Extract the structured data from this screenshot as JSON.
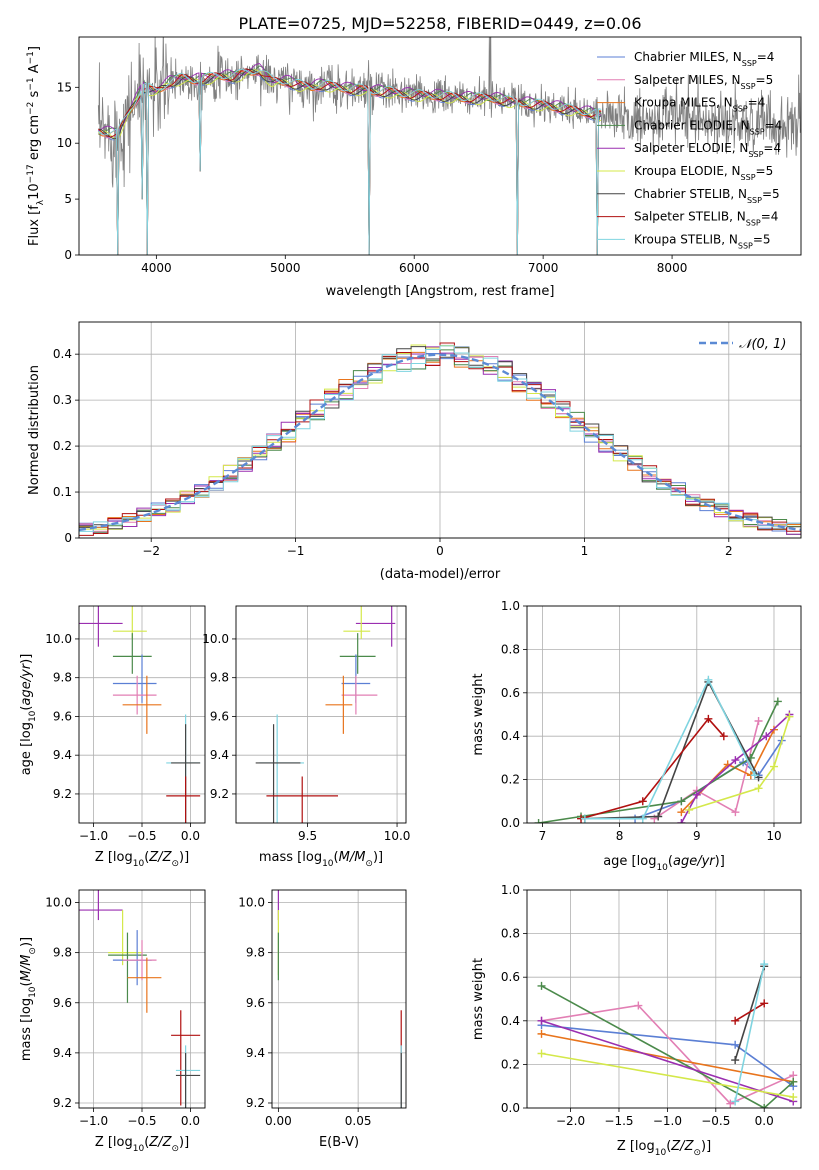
{
  "figure": {
    "title": "PLATE=0725, MJD=52258, FIBERID=0449, z=0.06"
  },
  "colors": {
    "Chabrier MILES": "#5b7fd4",
    "Salpeter MILES": "#e27fb4",
    "Kroupa MILES": "#e8741c",
    "Chabrier ELODIE": "#4b8a4b",
    "Salpeter ELODIE": "#9a2fb0",
    "Kroupa ELODIE": "#d4e84a",
    "Chabrier STELIB": "#444444",
    "Salpeter STELIB": "#b01010",
    "Kroupa STELIB": "#7fd4e0"
  },
  "chart_data": [
    {
      "id": "spectrum",
      "type": "line",
      "title": "PLATE=0725, MJD=52258, FIBERID=0449, z=0.06",
      "xlabel": "wavelength [Angstrom, rest frame]",
      "ylabel_parts": [
        "Flux [f",
        "λ",
        "10",
        "−17",
        " erg cm",
        "−2",
        " s",
        "−1",
        " A",
        "−1",
        "]"
      ],
      "xlim": [
        3400,
        9000
      ],
      "ylim": [
        0,
        19.5
      ],
      "xticks": [
        4000,
        5000,
        6000,
        7000,
        8000
      ],
      "yticks": [
        0,
        5,
        10,
        15
      ],
      "grid": false,
      "legend_position": "top-right",
      "legend": [
        {
          "name": "Chabrier MILES",
          "n": "4"
        },
        {
          "name": "Salpeter MILES",
          "n": "5"
        },
        {
          "name": "Kroupa MILES",
          "n": "4"
        },
        {
          "name": "Chabrier ELODIE",
          "n": "4"
        },
        {
          "name": "Salpeter ELODIE",
          "n": "4"
        },
        {
          "name": "Kroupa ELODIE",
          "n": "5"
        },
        {
          "name": "Chabrier STELIB",
          "n": "5"
        },
        {
          "name": "Salpeter STELIB",
          "n": "4"
        },
        {
          "name": "Kroupa STELIB",
          "n": "5"
        }
      ],
      "observed_color": "#808080",
      "continuum": [
        [
          3550,
          11.0
        ],
        [
          3700,
          10.8
        ],
        [
          3800,
          13.0
        ],
        [
          3900,
          15.0
        ],
        [
          4000,
          14.6
        ],
        [
          4100,
          15.4
        ],
        [
          4200,
          15.8
        ],
        [
          4300,
          15.6
        ],
        [
          4400,
          15.8
        ],
        [
          4500,
          16.0
        ],
        [
          4600,
          15.9
        ],
        [
          4700,
          16.3
        ],
        [
          4800,
          16.5
        ],
        [
          4900,
          15.5
        ],
        [
          5000,
          15.5
        ],
        [
          5100,
          15.2
        ],
        [
          5200,
          15.0
        ],
        [
          5300,
          15.2
        ],
        [
          5400,
          15.0
        ],
        [
          5500,
          14.8
        ],
        [
          5600,
          14.8
        ],
        [
          5700,
          14.6
        ],
        [
          5800,
          14.6
        ],
        [
          5900,
          14.4
        ],
        [
          6000,
          14.3
        ],
        [
          6200,
          14.2
        ],
        [
          6400,
          14.0
        ],
        [
          6600,
          14.0
        ],
        [
          6800,
          13.6
        ],
        [
          7000,
          13.4
        ],
        [
          7200,
          13.0
        ],
        [
          7400,
          12.6
        ],
        [
          7500,
          12.5
        ]
      ],
      "absorption_lines": [
        {
          "wave": 3700,
          "depth": 0.0
        },
        {
          "wave": 3890,
          "depth": 5.0
        },
        {
          "wave": 3933,
          "depth": 0.0
        },
        {
          "wave": 4340,
          "depth": 7.5
        },
        {
          "wave": 5650,
          "depth": 0.0
        },
        {
          "wave": 6800,
          "depth": 0.0
        },
        {
          "wave": 7420,
          "depth": 0.0
        }
      ]
    },
    {
      "id": "residual-histogram",
      "type": "histogram",
      "xlabel": "(data-model)/error",
      "ylabel": "Normed distribution",
      "xlim": [
        -2.5,
        2.5
      ],
      "ylim": [
        0,
        0.47
      ],
      "xticks": [
        -2,
        -1,
        0,
        1,
        2
      ],
      "yticks": [
        0,
        0.1,
        0.2,
        0.3,
        0.4
      ],
      "grid": true,
      "legend_position": "top-right",
      "reference_curve": {
        "label": "𝒩(0, 1)",
        "mean": 0,
        "sigma": 1,
        "color": "#5b8ad4"
      },
      "bin_width": 0.1
    },
    {
      "id": "age-vs-Z",
      "type": "scatter-errorbar",
      "xlabel": "Z [log10(Z/Z⊙)]",
      "ylabel": "age [log10(age/yr)]",
      "xlim": [
        -1.15,
        0.15
      ],
      "ylim": [
        9.05,
        10.17
      ],
      "xticks": [
        -1.0,
        -0.5,
        0.0
      ],
      "yticks": [
        9.2,
        9.4,
        9.6,
        9.8,
        10.0
      ],
      "grid": true,
      "points": [
        {
          "name": "Salpeter ELODIE",
          "x": -0.95,
          "y": 10.08,
          "xerr": [
            0.2,
            0.25
          ],
          "yerr": [
            0.38,
            0.12
          ]
        },
        {
          "name": "Kroupa ELODIE",
          "x": -0.6,
          "y": 10.04,
          "xerr": [
            0.2,
            0.15
          ],
          "yerr": [
            0.28,
            0.04
          ]
        },
        {
          "name": "Chabrier ELODIE",
          "x": -0.6,
          "y": 9.91,
          "xerr": [
            0.2,
            0.2
          ],
          "yerr": [
            0.12,
            0.09
          ]
        },
        {
          "name": "Chabrier MILES",
          "x": -0.5,
          "y": 9.77,
          "xerr": [
            0.3,
            0.15
          ],
          "yerr": [
            0.15,
            0.1
          ]
        },
        {
          "name": "Salpeter MILES",
          "x": -0.55,
          "y": 9.71,
          "xerr": [
            0.25,
            0.2
          ],
          "yerr": [
            0.1,
            0.1
          ]
        },
        {
          "name": "Kroupa MILES",
          "x": -0.45,
          "y": 9.66,
          "xerr": [
            0.25,
            0.15
          ],
          "yerr": [
            0.15,
            0.15
          ]
        },
        {
          "name": "Kroupa STELIB",
          "x": -0.05,
          "y": 9.36,
          "xerr": [
            0.2,
            0.15
          ],
          "yerr": [
            0.25,
            0.48
          ]
        },
        {
          "name": "Chabrier STELIB",
          "x": -0.05,
          "y": 9.36,
          "xerr": [
            0.15,
            0.15
          ],
          "yerr": [
            0.2,
            0.38
          ]
        },
        {
          "name": "Salpeter STELIB",
          "x": -0.05,
          "y": 9.19,
          "xerr": [
            0.2,
            0.15
          ],
          "yerr": [
            0.1,
            0.59
          ]
        }
      ]
    },
    {
      "id": "age-vs-mass",
      "type": "scatter-errorbar",
      "xlabel": "mass [log10(M/M⊙)]",
      "ylabel": "",
      "xlim": [
        9.1,
        10.05
      ],
      "ylim": [
        9.05,
        10.17
      ],
      "xticks": [
        9.5,
        10.0
      ],
      "yticks": [
        9.2,
        9.4,
        9.6,
        9.8,
        10.0
      ],
      "grid": true,
      "points": [
        {
          "name": "Salpeter ELODIE",
          "x": 9.97,
          "y": 10.08,
          "xerr": [
            0.2,
            0.02
          ],
          "yerr": [
            0.38,
            0.12
          ]
        },
        {
          "name": "Kroupa ELODIE",
          "x": 9.8,
          "y": 10.04,
          "xerr": [
            0.1,
            0.05
          ],
          "yerr": [
            0.28,
            0.04
          ]
        },
        {
          "name": "Chabrier ELODIE",
          "x": 9.78,
          "y": 9.91,
          "xerr": [
            0.1,
            0.1
          ],
          "yerr": [
            0.12,
            0.09
          ]
        },
        {
          "name": "Chabrier MILES",
          "x": 9.77,
          "y": 9.77,
          "xerr": [
            0.08,
            0.08
          ],
          "yerr": [
            0.15,
            0.1
          ]
        },
        {
          "name": "Salpeter MILES",
          "x": 9.77,
          "y": 9.71,
          "xerr": [
            0.08,
            0.12
          ],
          "yerr": [
            0.1,
            0.1
          ]
        },
        {
          "name": "Kroupa MILES",
          "x": 9.7,
          "y": 9.66,
          "xerr": [
            0.1,
            0.05
          ],
          "yerr": [
            0.15,
            0.15
          ]
        },
        {
          "name": "Kroupa STELIB",
          "x": 9.33,
          "y": 9.36,
          "xerr": [
            0.1,
            0.15
          ],
          "yerr": [
            0.25,
            0.48
          ]
        },
        {
          "name": "Chabrier STELIB",
          "x": 9.31,
          "y": 9.36,
          "xerr": [
            0.1,
            0.15
          ],
          "yerr": [
            0.2,
            0.38
          ]
        },
        {
          "name": "Salpeter STELIB",
          "x": 9.47,
          "y": 9.19,
          "xerr": [
            0.2,
            0.2
          ],
          "yerr": [
            0.1,
            0.59
          ]
        }
      ]
    },
    {
      "id": "mass-weight-vs-age",
      "type": "line",
      "xlabel": "age [log10(age/yr)]",
      "ylabel": "mass weight",
      "xlim": [
        6.8,
        10.35
      ],
      "ylim": [
        0,
        1.0
      ],
      "xticks": [
        7,
        8,
        9,
        10
      ],
      "yticks": [
        0.0,
        0.2,
        0.4,
        0.6,
        0.8,
        1.0
      ],
      "grid": true,
      "series": [
        {
          "name": "Chabrier MILES",
          "x": [
            8.2,
            8.8,
            9.6,
            9.8,
            10.1
          ],
          "values": [
            0.02,
            0.1,
            0.28,
            0.22,
            0.38
          ]
        },
        {
          "name": "Salpeter MILES",
          "x": [
            8.45,
            9.0,
            9.5,
            9.8
          ],
          "values": [
            0.02,
            0.15,
            0.05,
            0.47
          ]
        },
        {
          "name": "Kroupa MILES",
          "x": [
            8.8,
            9.4,
            9.7,
            10.0
          ],
          "values": [
            0.05,
            0.27,
            0.22,
            0.43
          ]
        },
        {
          "name": "Chabrier ELODIE",
          "x": [
            6.95,
            7.5,
            8.8,
            9.7,
            10.05
          ],
          "values": [
            0.0,
            0.03,
            0.1,
            0.3,
            0.56
          ]
        },
        {
          "name": "Salpeter ELODIE",
          "x": [
            8.8,
            9.0,
            9.5,
            9.9,
            10.2
          ],
          "values": [
            0.0,
            0.13,
            0.29,
            0.4,
            0.5
          ]
        },
        {
          "name": "Kroupa ELODIE",
          "x": [
            8.9,
            9.8,
            10.0,
            10.2
          ],
          "values": [
            0.06,
            0.16,
            0.26,
            0.49
          ]
        },
        {
          "name": "Chabrier STELIB",
          "x": [
            7.55,
            8.5,
            9.15,
            9.8
          ],
          "values": [
            0.02,
            0.03,
            0.65,
            0.21
          ]
        },
        {
          "name": "Salpeter STELIB",
          "x": [
            7.5,
            8.3,
            9.15,
            9.35
          ],
          "values": [
            0.02,
            0.1,
            0.48,
            0.4
          ]
        },
        {
          "name": "Kroupa STELIB",
          "x": [
            7.55,
            8.3,
            9.15,
            9.75
          ],
          "values": [
            0.02,
            0.02,
            0.66,
            0.22
          ]
        }
      ]
    },
    {
      "id": "mass-vs-Z",
      "type": "scatter-errorbar",
      "xlabel": "Z [log10(Z/Z⊙)]",
      "ylabel": "mass [log10(M/M⊙)]",
      "xlim": [
        -1.15,
        0.15
      ],
      "ylim": [
        9.18,
        10.05
      ],
      "xticks": [
        -1.0,
        -0.5,
        0.0
      ],
      "yticks": [
        9.2,
        9.4,
        9.6,
        9.8,
        10.0
      ],
      "grid": true,
      "points": [
        {
          "name": "Salpeter ELODIE",
          "x": -0.95,
          "y": 9.97,
          "xerr": [
            0.2,
            0.25
          ],
          "yerr": [
            0.2,
            0.04
          ]
        },
        {
          "name": "Kroupa ELODIE",
          "x": -0.7,
          "y": 9.8,
          "xerr": [
            0.15,
            0.2
          ],
          "yerr": [
            0.17,
            0.05
          ]
        },
        {
          "name": "Chabrier ELODIE",
          "x": -0.65,
          "y": 9.79,
          "xerr": [
            0.2,
            0.2
          ],
          "yerr": [
            0.09,
            0.19
          ]
        },
        {
          "name": "Chabrier MILES",
          "x": -0.55,
          "y": 9.77,
          "xerr": [
            0.25,
            0.15
          ],
          "yerr": [
            0.12,
            0.1
          ]
        },
        {
          "name": "Salpeter MILES",
          "x": -0.5,
          "y": 9.77,
          "xerr": [
            0.2,
            0.15
          ],
          "yerr": [
            0.08,
            0.08
          ]
        },
        {
          "name": "Kroupa MILES",
          "x": -0.45,
          "y": 9.7,
          "xerr": [
            0.2,
            0.15
          ],
          "yerr": [
            0.08,
            0.14
          ]
        },
        {
          "name": "Salpeter STELIB",
          "x": -0.1,
          "y": 9.47,
          "xerr": [
            0.1,
            0.2
          ],
          "yerr": [
            0.1,
            0.28
          ]
        },
        {
          "name": "Kroupa STELIB",
          "x": -0.05,
          "y": 9.33,
          "xerr": [
            0.1,
            0.15
          ],
          "yerr": [
            0.1,
            0.36
          ]
        },
        {
          "name": "Chabrier STELIB",
          "x": -0.05,
          "y": 9.31,
          "xerr": [
            0.1,
            0.15
          ],
          "yerr": [
            0.09,
            0.37
          ]
        }
      ]
    },
    {
      "id": "mass-vs-ebv",
      "type": "scatter-errorbar",
      "xlabel": "E(B-V)",
      "ylabel": "",
      "xlim": [
        -0.004,
        0.08
      ],
      "ylim": [
        9.18,
        10.05
      ],
      "xticks": [
        0.0,
        0.05
      ],
      "yticks": [
        9.2,
        9.4,
        9.6,
        9.8,
        10.0
      ],
      "grid": true,
      "points": [
        {
          "name": "Salpeter ELODIE",
          "x": 0.0,
          "y": 9.97,
          "xerr": [
            0.0,
            0.0
          ],
          "yerr": [
            0.2,
            0.04
          ]
        },
        {
          "name": "Kroupa ELODIE",
          "x": 0.0,
          "y": 9.8,
          "xerr": [
            0.0,
            0.0
          ],
          "yerr": [
            0.17,
            0.09
          ]
        },
        {
          "name": "Chabrier ELODIE",
          "x": 0.0,
          "y": 9.79,
          "xerr": [
            0.0,
            0.0
          ],
          "yerr": [
            0.09,
            0.1
          ]
        },
        {
          "name": "Salpeter STELIB",
          "x": 0.077,
          "y": 9.47,
          "xerr": [
            0.0,
            0.0
          ],
          "yerr": [
            0.1,
            0.28
          ]
        },
        {
          "name": "Kroupa STELIB",
          "x": 0.077,
          "y": 9.33,
          "xerr": [
            0.0,
            0.0
          ],
          "yerr": [
            0.1,
            0.36
          ]
        },
        {
          "name": "Chabrier STELIB",
          "x": 0.077,
          "y": 9.31,
          "xerr": [
            0.0,
            0.0
          ],
          "yerr": [
            0.09,
            0.37
          ]
        }
      ]
    },
    {
      "id": "mass-weight-vs-Z",
      "type": "line",
      "xlabel": "Z [log10(Z/Z⊙)]",
      "ylabel": "mass weight",
      "xlim": [
        -2.45,
        0.38
      ],
      "ylim": [
        0,
        1.0
      ],
      "xticks": [
        -2.0,
        -1.5,
        -1.0,
        -0.5,
        0.0
      ],
      "yticks": [
        0.0,
        0.2,
        0.4,
        0.6,
        0.8,
        1.0
      ],
      "grid": true,
      "series": [
        {
          "name": "Chabrier MILES",
          "x": [
            -2.3,
            -0.3,
            0.3
          ],
          "values": [
            0.38,
            0.29,
            0.1
          ]
        },
        {
          "name": "Salpeter MILES",
          "x": [
            -2.3,
            -1.3,
            -0.35,
            0.3
          ],
          "values": [
            0.4,
            0.47,
            0.02,
            0.15
          ]
        },
        {
          "name": "Kroupa MILES",
          "x": [
            -2.3,
            0.3
          ],
          "values": [
            0.34,
            0.12
          ]
        },
        {
          "name": "Chabrier ELODIE",
          "x": [
            -2.3,
            0.0,
            0.3
          ],
          "values": [
            0.56,
            0.0,
            0.12
          ]
        },
        {
          "name": "Salpeter ELODIE",
          "x": [
            -2.3,
            0.3
          ],
          "values": [
            0.4,
            0.03
          ]
        },
        {
          "name": "Kroupa ELODIE",
          "x": [
            -2.3,
            0.3
          ],
          "values": [
            0.25,
            0.05
          ]
        },
        {
          "name": "Chabrier STELIB",
          "x": [
            -0.3,
            0.0
          ],
          "values": [
            0.22,
            0.65
          ]
        },
        {
          "name": "Salpeter STELIB",
          "x": [
            -0.3,
            0.0
          ],
          "values": [
            0.4,
            0.48
          ]
        },
        {
          "name": "Kroupa STELIB",
          "x": [
            -0.3,
            0.0
          ],
          "values": [
            0.03,
            0.66
          ]
        }
      ]
    }
  ]
}
